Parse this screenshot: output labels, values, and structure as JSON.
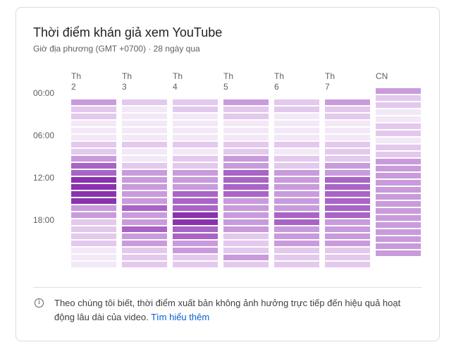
{
  "card": {
    "title": "Thời điểm khán giả xem YouTube",
    "subtitle": "Giờ địa phương (GMT +0700) · 28 ngày qua"
  },
  "time_labels": [
    "00:00",
    "06:00",
    "12:00",
    "18:00"
  ],
  "days": [
    {
      "label": "Th\n2"
    },
    {
      "label": "Th\n3"
    },
    {
      "label": "Th\n4"
    },
    {
      "label": "Th\n5"
    },
    {
      "label": "Th\n6"
    },
    {
      "label": "Th\n7"
    },
    {
      "label": "CN"
    }
  ],
  "colors": {
    "level_0": "#f3e8f7",
    "level_1": "#e3c9ed",
    "level_2": "#c99bdc",
    "level_3": "#a964c6",
    "level_4": "#8a33ae"
  },
  "chart_data": {
    "type": "heatmap",
    "x_categories": [
      "Th 2",
      "Th 3",
      "Th 4",
      "Th 5",
      "Th 6",
      "Th 7",
      "CN"
    ],
    "y_categories": [
      "00",
      "01",
      "02",
      "03",
      "04",
      "05",
      "06",
      "07",
      "08",
      "09",
      "10",
      "11",
      "12",
      "13",
      "14",
      "15",
      "16",
      "17",
      "18",
      "19",
      "20",
      "21",
      "22",
      "23"
    ],
    "levels": [
      [
        2,
        1,
        1,
        0,
        0,
        0,
        1,
        1,
        2,
        3,
        3,
        4,
        4,
        4,
        4,
        2,
        2,
        1,
        1,
        1,
        1,
        0,
        0,
        0
      ],
      [
        1,
        0,
        0,
        0,
        0,
        0,
        1,
        0,
        0,
        1,
        2,
        2,
        2,
        2,
        2,
        3,
        2,
        2,
        3,
        2,
        2,
        1,
        1,
        1
      ],
      [
        1,
        1,
        0,
        0,
        0,
        0,
        1,
        0,
        1,
        1,
        2,
        2,
        2,
        3,
        3,
        3,
        4,
        4,
        3,
        3,
        2,
        2,
        1,
        1
      ],
      [
        2,
        1,
        1,
        0,
        0,
        0,
        1,
        1,
        2,
        2,
        3,
        3,
        3,
        3,
        2,
        2,
        2,
        2,
        2,
        1,
        1,
        1,
        2,
        1
      ],
      [
        1,
        1,
        0,
        0,
        0,
        0,
        1,
        0,
        1,
        1,
        2,
        2,
        2,
        2,
        2,
        2,
        3,
        3,
        2,
        2,
        2,
        1,
        1,
        1
      ],
      [
        2,
        1,
        1,
        0,
        0,
        0,
        1,
        1,
        1,
        2,
        2,
        3,
        3,
        3,
        3,
        3,
        3,
        2,
        2,
        2,
        2,
        1,
        1,
        1
      ],
      [
        2,
        1,
        1,
        0,
        0,
        1,
        1,
        0,
        1,
        1,
        2,
        2,
        2,
        2,
        2,
        2,
        2,
        2,
        2,
        2,
        2,
        2,
        2,
        2
      ]
    ]
  },
  "footer": {
    "info_text": "Theo chúng tôi biết, thời điểm xuất bản không ảnh hưởng trực tiếp đến hiệu quả hoạt động lâu dài của video. ",
    "learn_more": "Tìm hiểu thêm"
  }
}
